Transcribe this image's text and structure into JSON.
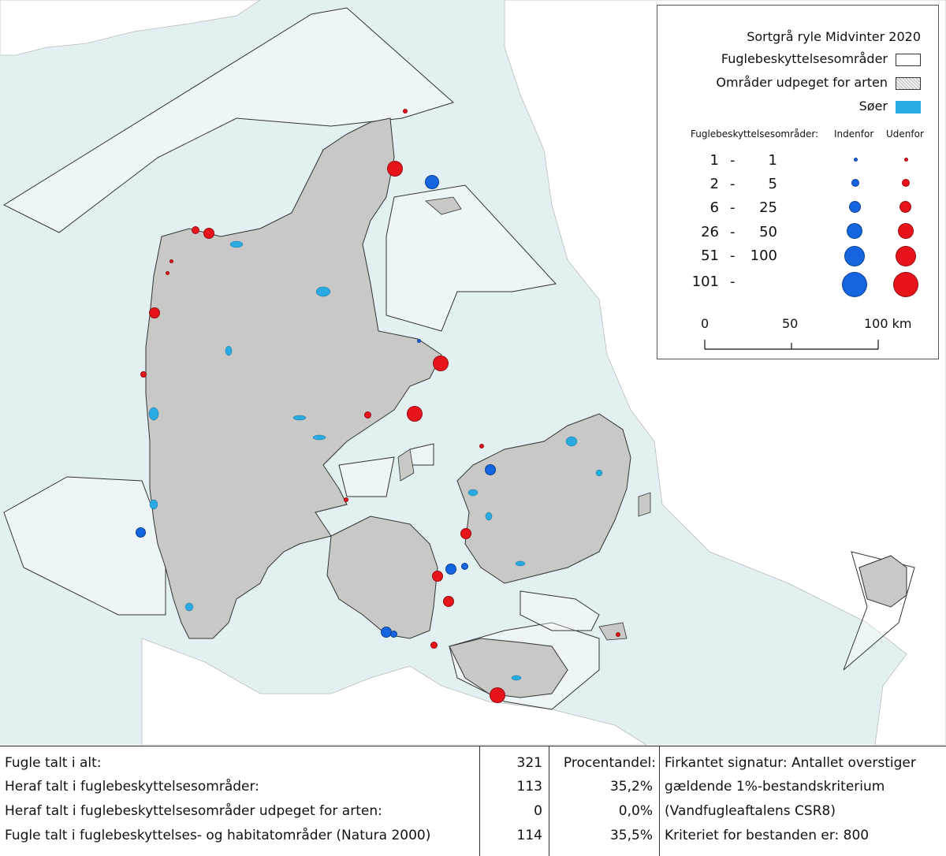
{
  "legend": {
    "title": "Sortgrå ryle Midvinter 2020",
    "items": [
      {
        "label": "Fuglebeskyttelsesområder",
        "swatch": "white"
      },
      {
        "label": "Områder udpeget for arten",
        "swatch": "hatched"
      },
      {
        "label": "Søer",
        "swatch": "#29abe2"
      }
    ],
    "size_header": "Fuglebeskyttelsesområder:",
    "col_inside": "Indenfor",
    "col_outside": "Udenfor",
    "classes": [
      {
        "from": "1",
        "dash": "-",
        "to": "1"
      },
      {
        "from": "2",
        "dash": "-",
        "to": "5"
      },
      {
        "from": "6",
        "dash": "-",
        "to": "25"
      },
      {
        "from": "26",
        "dash": "-",
        "to": "50"
      },
      {
        "from": "51",
        "dash": "-",
        "to": "100"
      },
      {
        "from": "101",
        "dash": "-",
        "to": ""
      }
    ],
    "scale": {
      "labels": [
        "0",
        "50",
        "100 km"
      ]
    }
  },
  "colors": {
    "inside": "#1565e0",
    "outside": "#e8141c",
    "land": "#c8c8c6",
    "sea": "#e3f0f1",
    "lakes": "#29abe2"
  },
  "stats": {
    "rows": [
      {
        "label": "Fugle talt i alt:",
        "count": "321",
        "pct": ""
      },
      {
        "label": "Heraf talt i fuglebeskyttelsesområder:",
        "count": "113",
        "pct": "35,2%"
      },
      {
        "label": "Heraf talt i fuglebeskyttelsesområder udpeget for arten:",
        "count": "0",
        "pct": "0,0%"
      },
      {
        "label": "Fugle talt i fuglebeskyttelses- og habitatområder (Natura 2000)",
        "count": "114",
        "pct": "35,5%"
      }
    ],
    "pct_header": "Procentandel:",
    "notes": [
      "Firkantet signatur: Antallet overstiger",
      "gældende 1%-bestandskriterium",
      "(Vandfugleaftalens CSR8)",
      "Kriteriet for bestanden er: 800"
    ]
  }
}
